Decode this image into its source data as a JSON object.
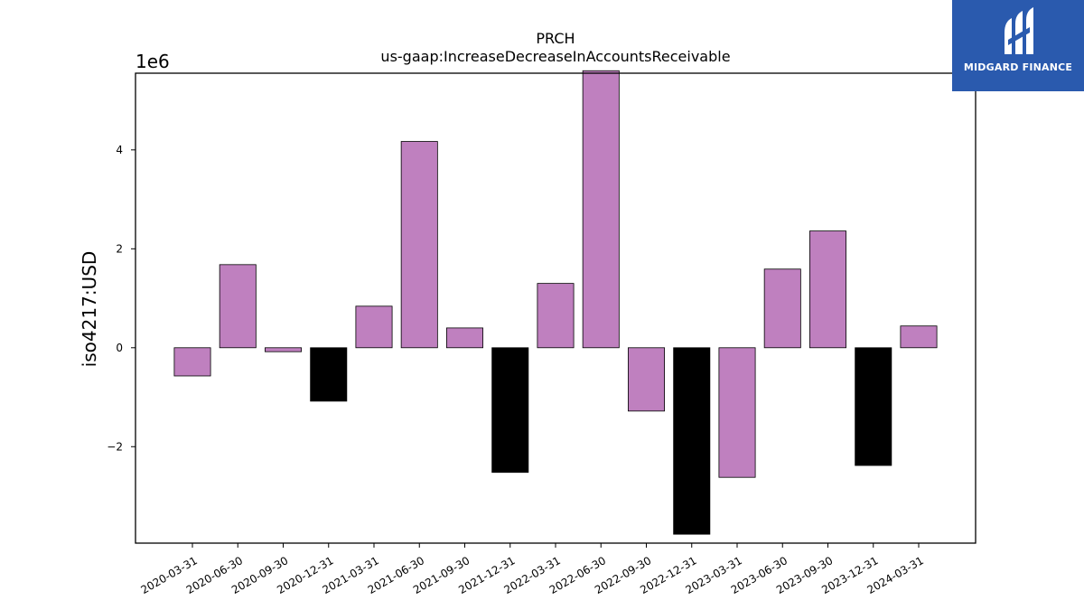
{
  "chart_data": {
    "type": "bar",
    "title": "PRCH",
    "subtitle": "us-gaap:IncreaseDecreaseInAccountsReceivable",
    "ylabel": "iso4217:USD",
    "xlabel": "",
    "offset_label": "1e6",
    "ylim": [
      -3.95,
      5.55
    ],
    "yticks": [
      -2,
      0,
      2,
      4
    ],
    "ytick_labels": [
      "−2",
      "0",
      "2",
      "4"
    ],
    "categories": [
      "2020-03-31",
      "2020-06-30",
      "2020-09-30",
      "2020-12-31",
      "2021-03-31",
      "2021-06-30",
      "2021-09-30",
      "2021-12-31",
      "2022-03-31",
      "2022-06-30",
      "2022-09-30",
      "2022-12-31",
      "2023-03-31",
      "2023-06-30",
      "2023-09-30",
      "2023-12-31",
      "2024-03-31"
    ],
    "values": [
      -0.57,
      1.68,
      -0.08,
      -1.08,
      0.84,
      4.17,
      0.4,
      -2.52,
      1.3,
      5.6,
      -1.28,
      -3.77,
      -2.62,
      1.59,
      2.36,
      -2.38,
      0.44
    ],
    "bar_colors": [
      "#bf80bf",
      "#bf80bf",
      "#bf80bf",
      "#000000",
      "#bf80bf",
      "#bf80bf",
      "#bf80bf",
      "#000000",
      "#bf80bf",
      "#bf80bf",
      "#bf80bf",
      "#000000",
      "#bf80bf",
      "#bf80bf",
      "#bf80bf",
      "#000000",
      "#bf80bf"
    ],
    "colors": {
      "regular": "#bf80bf",
      "year_end": "#000000",
      "edge": "#000000"
    },
    "grid": false,
    "legend": "none"
  },
  "logo": {
    "text": "MIDGARD FINANCE",
    "background": "#2a5aae",
    "foreground": "#ffffff"
  }
}
